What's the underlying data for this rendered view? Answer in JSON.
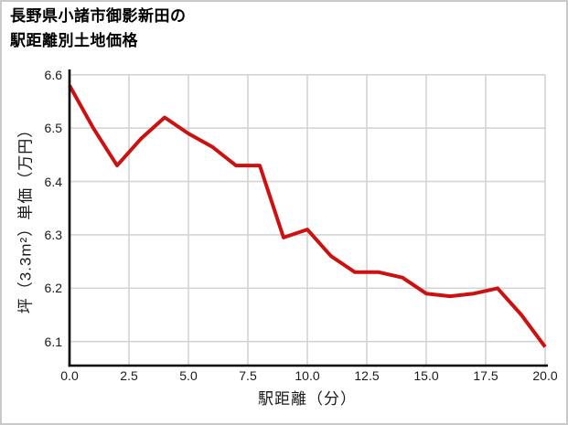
{
  "window": {
    "background": "#ffffff",
    "border_color": "#c9c9c9"
  },
  "chart_data": {
    "type": "line",
    "title": "長野県小諸市御影新田の駅距離別土地価格",
    "title_lines": [
      "長野県小諸市御影新田の",
      "駅距離別土地価格"
    ],
    "xlabel": "駅距離（分）",
    "ylabel": "坪（3.3m²）単価（万円）",
    "x": [
      0,
      1,
      2,
      3,
      4,
      5,
      6,
      7,
      8,
      9,
      10,
      11,
      12,
      13,
      14,
      15,
      16,
      17,
      18,
      19,
      20
    ],
    "y": [
      6.58,
      6.5,
      6.43,
      6.48,
      6.52,
      6.49,
      6.465,
      6.43,
      6.43,
      6.295,
      6.31,
      6.26,
      6.23,
      6.23,
      6.22,
      6.19,
      6.185,
      6.19,
      6.2,
      6.15,
      6.09
    ],
    "xlim": [
      0,
      20
    ],
    "ylim": [
      6.055,
      6.61
    ],
    "xticks": [
      0,
      2.5,
      5,
      7.5,
      10,
      12.5,
      15,
      17.5,
      20
    ],
    "yticks": [
      6.1,
      6.2,
      6.3,
      6.4,
      6.5,
      6.6
    ],
    "xtick_labels": [
      "0.0",
      "2.5",
      "5.0",
      "7.5",
      "10.0",
      "12.5",
      "15.0",
      "17.5",
      "20.0"
    ],
    "ytick_labels": [
      "6.1",
      "6.2",
      "6.3",
      "6.4",
      "6.5",
      "6.6"
    ],
    "grid": true,
    "legend": "none",
    "line_color": "#cc1111",
    "line_width": 4,
    "grid_color": "#d4d4d4",
    "spine_color": "#000000",
    "text_color": "#1a1a1a"
  }
}
